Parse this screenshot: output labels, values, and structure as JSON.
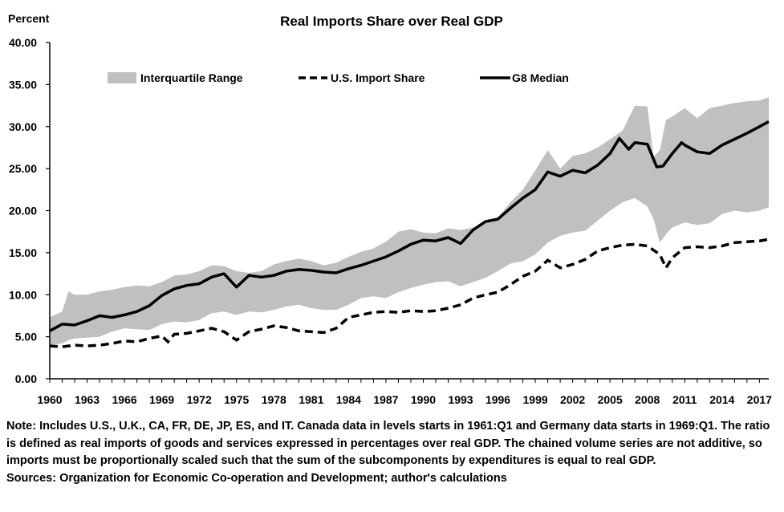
{
  "chart_data": {
    "type": "area",
    "title": "Real Imports Share over Real GDP",
    "ylabel": "Percent",
    "xlabel": "",
    "ylim": [
      0,
      40
    ],
    "xlim": [
      1960,
      2017.75
    ],
    "yticks": [
      "0.00",
      "5.00",
      "10.00",
      "15.00",
      "20.00",
      "25.00",
      "30.00",
      "35.00",
      "40.00"
    ],
    "xticks": [
      "1960",
      "1963",
      "1966",
      "1969",
      "1972",
      "1975",
      "1978",
      "1981",
      "1984",
      "1987",
      "1990",
      "1993",
      "1996",
      "1999",
      "2002",
      "2005",
      "2008",
      "2011",
      "2014",
      "2017"
    ],
    "grid": false,
    "legend_position": "top",
    "colors": {
      "range": "#c0c0c0",
      "us": "#000000",
      "median": "#000000"
    },
    "series": [
      {
        "name": "Interquartile Range",
        "style": "band",
        "x": [
          1960,
          1961,
          1961.5,
          1962,
          1963,
          1964,
          1965,
          1966,
          1967,
          1968,
          1969,
          1970,
          1971,
          1972,
          1973,
          1974,
          1975,
          1976,
          1977,
          1978,
          1979,
          1980,
          1981,
          1982,
          1983,
          1984,
          1985,
          1986,
          1987,
          1988,
          1989,
          1990,
          1991,
          1992,
          1993,
          1994,
          1995,
          1996,
          1997,
          1998,
          1999,
          2000,
          2001,
          2002,
          2003,
          2004,
          2005,
          2006,
          2007,
          2008,
          2008.5,
          2009,
          2009.5,
          2010,
          2011,
          2012,
          2013,
          2014,
          2015,
          2016,
          2017,
          2017.75
        ],
        "low": [
          4.0,
          4.2,
          4.6,
          4.8,
          4.9,
          5.0,
          5.6,
          6.0,
          5.9,
          5.8,
          6.5,
          6.8,
          6.7,
          7.0,
          7.8,
          8.0,
          7.6,
          8.0,
          7.9,
          8.2,
          8.6,
          8.8,
          8.4,
          8.2,
          8.2,
          8.8,
          9.6,
          9.8,
          9.6,
          10.3,
          10.8,
          11.2,
          11.5,
          11.6,
          11.0,
          11.5,
          12.0,
          12.8,
          13.7,
          14.0,
          14.8,
          16.2,
          17.0,
          17.4,
          17.6,
          18.8,
          20.0,
          21.0,
          21.5,
          20.5,
          19.0,
          16.2,
          17.2,
          18.0,
          18.6,
          18.3,
          18.5,
          19.6,
          20.0,
          19.8,
          20.0,
          20.4
        ],
        "high": [
          7.3,
          8.0,
          10.4,
          10.0,
          10.0,
          10.4,
          10.6,
          10.9,
          11.1,
          11.0,
          11.5,
          12.3,
          12.4,
          12.8,
          13.5,
          13.4,
          12.8,
          12.6,
          12.8,
          13.6,
          14.0,
          14.3,
          14.0,
          13.5,
          13.8,
          14.5,
          15.1,
          15.5,
          16.3,
          17.5,
          17.8,
          17.4,
          17.3,
          17.9,
          17.7,
          18.0,
          18.5,
          19.2,
          21.0,
          22.5,
          24.8,
          27.2,
          25.0,
          26.5,
          26.8,
          27.5,
          28.5,
          29.5,
          32.5,
          32.4,
          26.4,
          27.2,
          30.8,
          31.2,
          32.2,
          31.0,
          32.2,
          32.5,
          32.8,
          33.0,
          33.1,
          33.5
        ]
      },
      {
        "name": "U.S. Import Share",
        "style": "dashed",
        "x": [
          1960,
          1961,
          1962,
          1963,
          1964,
          1965,
          1966,
          1967,
          1968,
          1969,
          1969.5,
          1970,
          1971,
          1972,
          1973,
          1974,
          1975,
          1976,
          1977,
          1978,
          1979,
          1980,
          1981,
          1982,
          1983,
          1984,
          1985,
          1986,
          1987,
          1988,
          1989,
          1990,
          1991,
          1992,
          1993,
          1994,
          1995,
          1996,
          1997,
          1998,
          1999,
          2000,
          2001,
          2002,
          2003,
          2004,
          2005,
          2006,
          2007,
          2008,
          2009,
          2009.5,
          2010,
          2011,
          2012,
          2013,
          2014,
          2015,
          2016,
          2017,
          2017.75
        ],
        "values": [
          3.9,
          3.8,
          4.0,
          3.9,
          4.0,
          4.2,
          4.5,
          4.4,
          4.8,
          5.1,
          4.4,
          5.3,
          5.4,
          5.7,
          6.0,
          5.6,
          4.6,
          5.6,
          5.9,
          6.3,
          6.1,
          5.7,
          5.6,
          5.5,
          6.0,
          7.3,
          7.6,
          7.9,
          8.0,
          7.9,
          8.1,
          8.0,
          8.1,
          8.4,
          8.8,
          9.6,
          10.0,
          10.3,
          11.2,
          12.2,
          12.8,
          14.1,
          13.2,
          13.6,
          14.2,
          15.2,
          15.6,
          15.9,
          16.0,
          15.8,
          14.8,
          13.2,
          14.4,
          15.6,
          15.7,
          15.6,
          15.8,
          16.2,
          16.3,
          16.4,
          16.6
        ]
      },
      {
        "name": "G8 Median",
        "style": "solid",
        "x": [
          1960,
          1961,
          1962,
          1963,
          1964,
          1965,
          1966,
          1967,
          1968,
          1969,
          1970,
          1971,
          1972,
          1973,
          1974,
          1975,
          1976,
          1977,
          1978,
          1979,
          1980,
          1981,
          1982,
          1983,
          1984,
          1985,
          1986,
          1987,
          1988,
          1989,
          1990,
          1991,
          1992,
          1993,
          1994,
          1995,
          1996,
          1997,
          1998,
          1999,
          2000,
          2001,
          2002,
          2003,
          2004,
          2005,
          2005.75,
          2006.5,
          2007,
          2008,
          2008.75,
          2009.25,
          2010,
          2010.75,
          2011,
          2012,
          2013,
          2014,
          2015,
          2016,
          2017,
          2017.75
        ],
        "values": [
          5.7,
          6.5,
          6.4,
          6.9,
          7.5,
          7.3,
          7.6,
          8.0,
          8.7,
          9.9,
          10.7,
          11.1,
          11.3,
          12.1,
          12.5,
          10.9,
          12.3,
          12.1,
          12.3,
          12.8,
          13.0,
          12.9,
          12.7,
          12.6,
          13.1,
          13.5,
          14.0,
          14.5,
          15.2,
          16.0,
          16.5,
          16.4,
          16.8,
          16.1,
          17.7,
          18.7,
          19.0,
          20.3,
          21.5,
          22.5,
          24.6,
          24.1,
          24.8,
          24.5,
          25.4,
          26.8,
          28.6,
          27.3,
          28.1,
          27.9,
          25.2,
          25.3,
          26.8,
          28.1,
          27.8,
          27.0,
          26.8,
          27.8,
          28.5,
          29.2,
          30.0,
          30.6
        ]
      }
    ]
  },
  "note": {
    "text": "Note: Includes U.S., U.K., CA, FR, DE, JP, ES, and IT. Canada data in levels starts in 1961:Q1 and Germany data starts in 1969:Q1. The ratio is defined as real imports of goods and services expressed in percentages over real GDP. The chained volume series are not additive, so imports must be proportionally scaled such that the sum of the subcomponents by expenditures is equal to real GDP.",
    "sources": "Sources: Organization for Economic Co-operation and Development; author's calculations"
  }
}
